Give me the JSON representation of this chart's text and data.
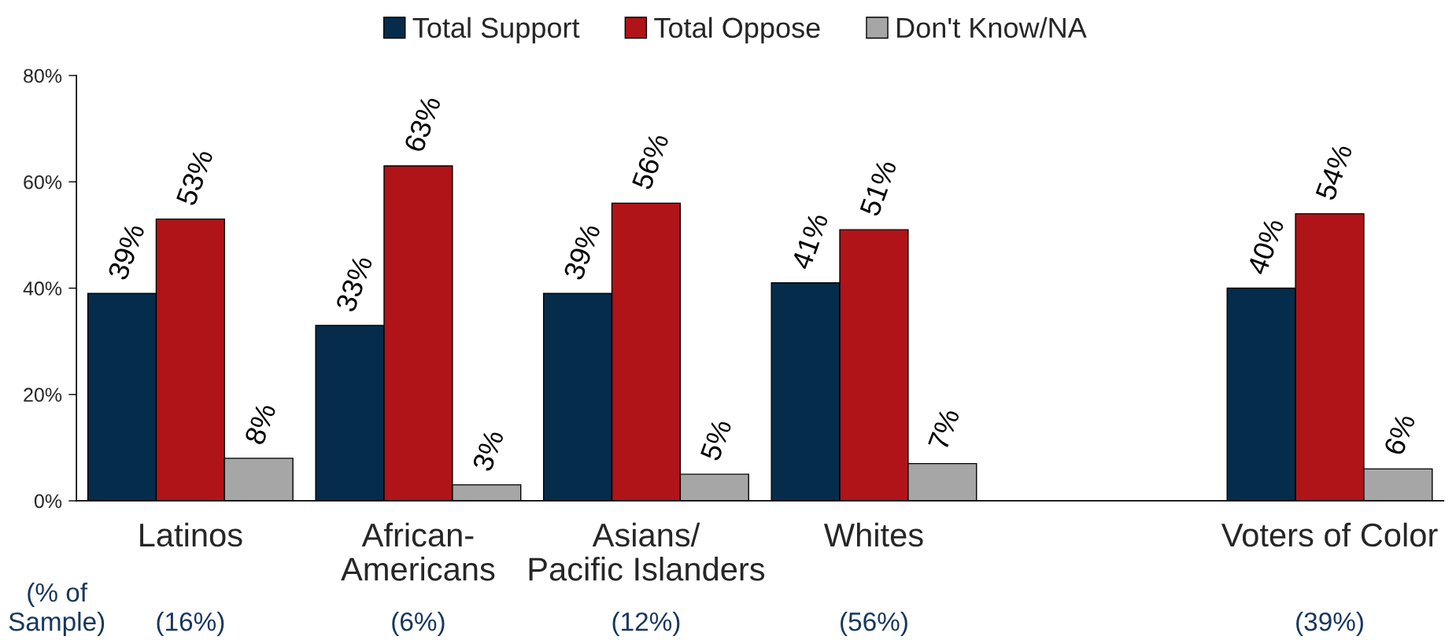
{
  "chart_data": {
    "type": "bar",
    "categories": [
      "Latinos",
      "African-\nAmericans",
      "Asians/\nPacific Islanders",
      "Whites",
      null,
      "Voters of Color"
    ],
    "series": [
      {
        "name": "Total Support",
        "color": "#062c4c",
        "values": [
          39,
          33,
          39,
          41,
          null,
          40
        ],
        "value_labels": [
          "39%",
          "33%",
          "39%",
          "41%",
          null,
          "40%"
        ]
      },
      {
        "name": "Total Oppose",
        "color": "#b01318",
        "values": [
          53,
          63,
          56,
          51,
          null,
          54
        ],
        "value_labels": [
          "53%",
          "63%",
          "56%",
          "51%",
          null,
          "54%"
        ]
      },
      {
        "name": "Don't Know/NA",
        "color": "#a6a6a6",
        "values": [
          8,
          3,
          5,
          7,
          null,
          6
        ],
        "value_labels": [
          "8%",
          "3%",
          "5%",
          "7%",
          null,
          "6%"
        ]
      }
    ],
    "ylim": [
      0,
      80
    ],
    "yticks": [
      {
        "value": 0,
        "label": "0%"
      },
      {
        "value": 20,
        "label": "20%"
      },
      {
        "value": 40,
        "label": "40%"
      },
      {
        "value": 60,
        "label": "60%"
      },
      {
        "value": 80,
        "label": "80%"
      }
    ],
    "legend": "top",
    "annotations": [
      "(% of\nSample)",
      "(16%)",
      "(6%)",
      "(12%)",
      "(56%)",
      "(39%)"
    ]
  }
}
